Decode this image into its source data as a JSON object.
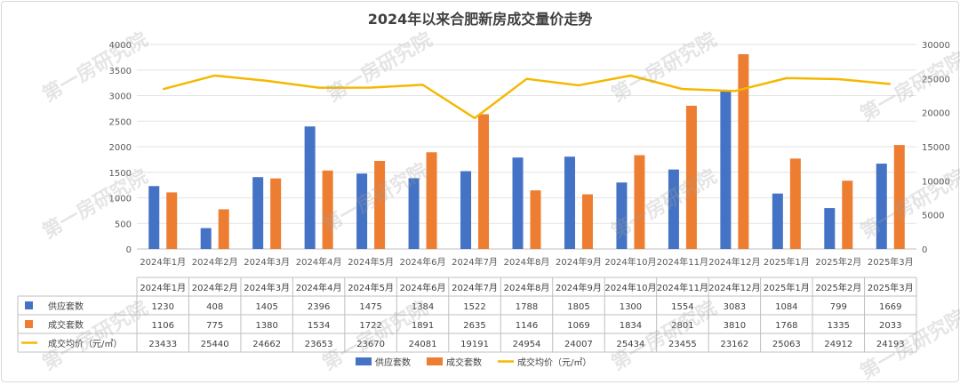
{
  "chart_data": {
    "type": "bar",
    "title": "2024年以来合肥新房成交量价走势",
    "categories": [
      "2024年1月",
      "2024年2月",
      "2024年3月",
      "2024年4月",
      "2024年5月",
      "2024年6月",
      "2024年7月",
      "2024年8月",
      "2024年9月",
      "2024年10月",
      "2024年11月",
      "2024年12月",
      "2025年1月",
      "2025年2月",
      "2025年3月"
    ],
    "series": [
      {
        "name": "供应套数",
        "type": "bar",
        "axis": "left",
        "color": "#4472C4",
        "values": [
          1230,
          408,
          1405,
          2396,
          1475,
          1384,
          1522,
          1788,
          1805,
          1300,
          1554,
          3083,
          1084,
          799,
          1669
        ]
      },
      {
        "name": "成交套数",
        "type": "bar",
        "axis": "left",
        "color": "#ED7D31",
        "values": [
          1106,
          775,
          1380,
          1534,
          1722,
          1891,
          2635,
          1146,
          1069,
          1834,
          2801,
          3810,
          1768,
          1335,
          2033
        ]
      },
      {
        "name": "成交均价（元/㎡）",
        "type": "line",
        "axis": "right",
        "color": "#F5B800",
        "values": [
          23433,
          25440,
          24662,
          23653,
          23670,
          24081,
          19191,
          24954,
          24007,
          25434,
          23455,
          23162,
          25063,
          24912,
          24193
        ]
      }
    ],
    "left_axis": {
      "min": 0,
      "max": 4000,
      "ticks": [
        "0",
        "500",
        "1000",
        "1500",
        "2000",
        "2500",
        "3000",
        "3500",
        "4000"
      ]
    },
    "right_axis": {
      "min": 0,
      "max": 30000,
      "ticks": [
        "0",
        "5000",
        "10000",
        "15000",
        "20000",
        "25000",
        "30000"
      ]
    },
    "grid": true,
    "legend": "bottom",
    "data_table": true
  },
  "watermark_text": "第一房研究院"
}
